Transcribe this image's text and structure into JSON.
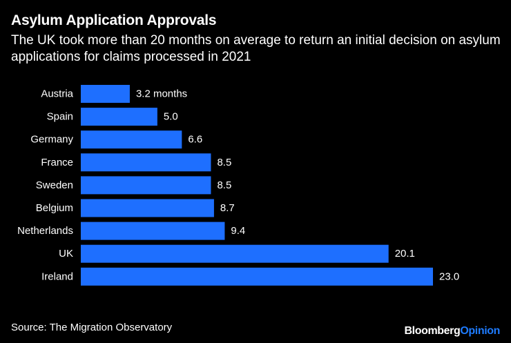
{
  "header": {
    "title": "Asylum Application Approvals",
    "subtitle": "The UK took more than 20 months on average to return an initial decision on asylum applications for claims processed in 2021"
  },
  "chart_data": {
    "type": "bar",
    "orientation": "horizontal",
    "categories": [
      "Austria",
      "Spain",
      "Germany",
      "France",
      "Sweden",
      "Belgium",
      "Netherlands",
      "UK",
      "Ireland"
    ],
    "values": [
      3.2,
      5.0,
      6.6,
      8.5,
      8.5,
      8.7,
      9.4,
      20.1,
      23.0
    ],
    "value_labels": [
      "3.2 months",
      "5.0",
      "6.6",
      "8.5",
      "8.5",
      "8.7",
      "9.4",
      "20.1",
      "23.0"
    ],
    "unit": "months",
    "xlim": [
      0,
      23.0
    ],
    "bar_color": "#1e6fff",
    "grid": false
  },
  "footer": {
    "source": "Source: The Migration Observatory",
    "brand_main": "Bloomberg",
    "brand_accent": "Opinion"
  }
}
